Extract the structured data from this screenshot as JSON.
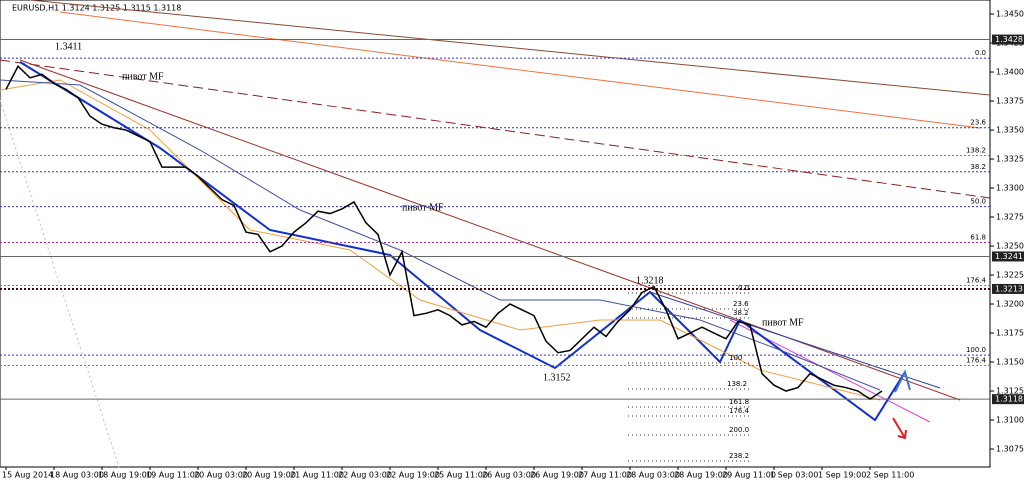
{
  "header": "EURUSD,H1  1.3124 1.3125 1.3115 1.3118",
  "chart_data": {
    "type": "line",
    "color": "#000000",
    "categories": [
      "15 Aug 2014",
      null,
      null,
      null,
      "18 Aug 03:00",
      null,
      null,
      null,
      "18 Aug 19:00",
      null,
      null,
      null,
      "19 Aug 11:00",
      null,
      null,
      null,
      "20 Aug 03:00",
      null,
      null,
      null,
      "20 Aug 19:00",
      null,
      null,
      null,
      "21 Aug 11:00",
      null,
      null,
      null,
      "22 Aug 03:00",
      null,
      null,
      null,
      "22 Aug 19:00",
      null,
      null,
      null,
      "25 Aug 11:00",
      null,
      null,
      null,
      "26 Aug 03:00",
      null,
      null,
      null,
      "26 Aug 19:00",
      null,
      null,
      null,
      "27 Aug 11:00",
      null,
      null,
      null,
      "28 Aug 03:00",
      null,
      null,
      null,
      "28 Aug 19:00",
      null,
      null,
      null,
      "29 Aug 11:00",
      null,
      null,
      null,
      "1 Sep 03:00",
      null,
      null,
      null,
      "1 Sep 19:00",
      null,
      null,
      null,
      "2 Sep 11:00",
      null
    ],
    "values": [
      1.3385,
      1.3405,
      1.3395,
      1.3398,
      1.339,
      1.3385,
      1.3378,
      1.3362,
      1.3355,
      1.3352,
      1.335,
      1.3345,
      1.334,
      1.3318,
      1.3318,
      1.3318,
      1.331,
      1.33,
      1.329,
      1.3285,
      1.3262,
      1.326,
      1.3245,
      1.325,
      1.3262,
      1.327,
      1.328,
      1.3278,
      1.3282,
      1.3288,
      1.327,
      1.326,
      1.3225,
      1.3245,
      1.319,
      1.3192,
      1.3195,
      1.319,
      1.3182,
      1.3185,
      1.318,
      1.3192,
      1.32,
      1.3195,
      1.319,
      1.3168,
      1.3158,
      1.316,
      1.317,
      1.318,
      1.3172,
      1.3185,
      1.3195,
      1.321,
      1.3215,
      1.3195,
      1.317,
      1.3175,
      1.318,
      1.3175,
      1.317,
      1.3185,
      1.3182,
      1.314,
      1.313,
      1.3125,
      1.3128,
      1.314,
      1.3135,
      1.313,
      1.3128,
      1.3125,
      1.3118,
      1.3125
    ],
    "ylim": [
      1.30595,
      1.34621
    ],
    "yticks": [
      {
        "value": 1.345,
        "label": "1.3450"
      },
      {
        "value": 1.3425,
        "label": "1.3425"
      },
      {
        "value": 1.34,
        "label": "1.3400"
      },
      {
        "value": 1.3375,
        "label": "1.3375"
      },
      {
        "value": 1.335,
        "label": "1.3350"
      },
      {
        "value": 1.3325,
        "label": "1.3325"
      },
      {
        "value": 1.33,
        "label": "1.3300"
      },
      {
        "value": 1.3275,
        "label": "1.3275"
      },
      {
        "value": 1.325,
        "label": "1.3250"
      },
      {
        "value": 1.3225,
        "label": "1.3225"
      },
      {
        "value": 1.32,
        "label": "1.3200"
      },
      {
        "value": 1.3175,
        "label": "1.3175"
      },
      {
        "value": 1.315,
        "label": "1.3150"
      },
      {
        "value": 1.3125,
        "label": "1.3125"
      },
      {
        "value": 1.31,
        "label": "1.3100"
      },
      {
        "value": 1.3075,
        "label": "1.3075"
      }
    ],
    "levels": [
      {
        "value": 1.3412,
        "label": "0.0",
        "color": "#3030c0"
      },
      {
        "value": 1.3352,
        "label": "23.6",
        "color": "#3030c0"
      },
      {
        "value": 1.3328,
        "label": "138.2",
        "color": "#e06020"
      },
      {
        "value": 1.3314,
        "label": "38.2",
        "color": "#3030c0"
      },
      {
        "value": 1.3284,
        "label": "50.0",
        "color": "#3030c0"
      },
      {
        "value": 1.3253,
        "label": "61.8",
        "color": "#a030a0"
      },
      {
        "value": 1.3216,
        "label": "176.4",
        "color": "#e06020"
      },
      {
        "value": 1.3156,
        "label": "100.0",
        "color": "#3030c0"
      },
      {
        "value": 1.3147,
        "label": "176.4",
        "color": "#e06020"
      }
    ],
    "price_boxes": [
      1.3428,
      1.3241,
      1.3213,
      1.3118
    ],
    "annotations": [
      "1.3411",
      "1.3218",
      "1.3152",
      "пивот MF",
      "пивот MF",
      "пивот MF"
    ],
    "fib_labels": [
      "0.0",
      "23.6",
      "38.2",
      "100",
      "138.2",
      "161.8",
      "176.4",
      "200.0",
      "238.2"
    ]
  }
}
